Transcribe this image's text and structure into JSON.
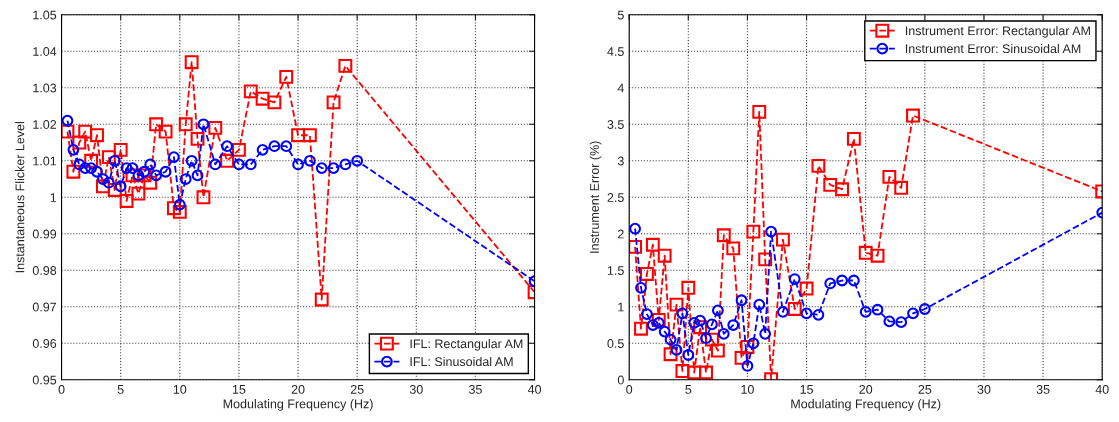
{
  "chart_data": [
    {
      "type": "line",
      "xlabel": "Modulating Frequency (Hz)",
      "ylabel": "Instantaneous Flicker Level",
      "xlim": [
        0,
        40
      ],
      "xticks": [
        0,
        5,
        10,
        15,
        20,
        25,
        30,
        35,
        40
      ],
      "ylim": [
        0.95,
        1.05
      ],
      "yticks": [
        {
          "value": 0.95,
          "label": "0.95"
        },
        {
          "value": 0.96,
          "label": "0.96"
        },
        {
          "value": 0.97,
          "label": "0.97"
        },
        {
          "value": 0.98,
          "label": "0.98"
        },
        {
          "value": 0.99,
          "label": "0.99"
        },
        {
          "value": 1,
          "label": "1"
        },
        {
          "value": 1.01,
          "label": "1.01"
        },
        {
          "value": 1.02,
          "label": "1.02"
        },
        {
          "value": 1.03,
          "label": "1.03"
        },
        {
          "value": 1.04,
          "label": "1.04"
        },
        {
          "value": 1.05,
          "label": "1.05"
        }
      ],
      "grid": true,
      "legend": "bottom right",
      "line_style": "dashed",
      "series": [
        {
          "name": "IFL: Rectangular AM",
          "color": "#ff0000",
          "marker": "square",
          "x": [
            0.5,
            1,
            1.5,
            2,
            2.5,
            3,
            3.5,
            4,
            4.5,
            5,
            5.5,
            6,
            6.5,
            7,
            7.5,
            8,
            8.8,
            9.5,
            10,
            10.5,
            11,
            11.5,
            12,
            13,
            14,
            15,
            16,
            17,
            18,
            19,
            20,
            21,
            22,
            23,
            24,
            40
          ],
          "values": [
            1.018,
            1.007,
            1.015,
            1.018,
            1.01,
            1.017,
            1.003,
            1.011,
            1.002,
            1.013,
            0.999,
            1.006,
            1.001,
            1.006,
            1.004,
            1.02,
            1.018,
            0.997,
            0.996,
            1.02,
            1.037,
            1.016,
            1.0,
            1.019,
            1.01,
            1.013,
            1.029,
            1.027,
            1.026,
            1.033,
            1.017,
            1.017,
            0.972,
            1.026,
            1.036,
            0.974
          ]
        },
        {
          "name": "IFL: Sinusoidal AM",
          "color": "#0000ff",
          "marker": "circle",
          "x": [
            0.5,
            1,
            1.5,
            2,
            2.5,
            3,
            3.5,
            4,
            4.5,
            5,
            5.5,
            6,
            6.5,
            7,
            7.5,
            8,
            8.8,
            9.5,
            10,
            10.5,
            11,
            11.5,
            12,
            13,
            14,
            15,
            16,
            17,
            18,
            19,
            20,
            21,
            22,
            23,
            24,
            25,
            40
          ],
          "values": [
            1.021,
            1.013,
            1.009,
            1.008,
            1.008,
            1.007,
            1.005,
            1.004,
            1.01,
            1.003,
            1.008,
            1.008,
            1.006,
            1.007,
            1.009,
            1.006,
            1.007,
            1.011,
            0.998,
            1.005,
            1.01,
            1.006,
            1.02,
            1.009,
            1.014,
            1.009,
            1.009,
            1.013,
            1.014,
            1.014,
            1.009,
            1.01,
            1.008,
            1.008,
            1.009,
            1.01,
            0.977
          ]
        }
      ]
    },
    {
      "type": "line",
      "xlabel": "Modulating Frequency (Hz)",
      "ylabel": "Instrument Error (%)",
      "xlim": [
        0,
        40
      ],
      "xticks": [
        0,
        5,
        10,
        15,
        20,
        25,
        30,
        35,
        40
      ],
      "ylim": [
        0,
        5
      ],
      "yticks": [
        0,
        0.5,
        1,
        1.5,
        2,
        2.5,
        3,
        3.5,
        4,
        4.5,
        5
      ],
      "grid": true,
      "legend": "top right",
      "line_style": "dashed",
      "series": [
        {
          "name": "Instrument Error: Rectangular AM",
          "color": "#ff0000",
          "marker": "square",
          "x": [
            0.5,
            1,
            1.5,
            2,
            2.5,
            3,
            3.5,
            4,
            4.5,
            5,
            5.5,
            6,
            6.5,
            7,
            7.5,
            8,
            8.8,
            9.5,
            10,
            10.5,
            11,
            11.5,
            12,
            13,
            14,
            15,
            16,
            17,
            18,
            19,
            20,
            21,
            22,
            23,
            24,
            40
          ],
          "values": [
            1.82,
            0.7,
            1.45,
            1.85,
            0.82,
            1.7,
            0.35,
            1.03,
            0.12,
            1.26,
            0.1,
            0.72,
            0.1,
            0.55,
            0.4,
            1.98,
            1.8,
            0.3,
            0.45,
            2.03,
            3.67,
            1.65,
            0.01,
            1.92,
            0.97,
            1.25,
            2.93,
            2.67,
            2.61,
            3.3,
            1.74,
            1.7,
            2.78,
            2.63,
            3.62,
            2.58
          ]
        },
        {
          "name": "Instrument Error: Sinusoidal AM",
          "color": "#0000ff",
          "marker": "circle",
          "x": [
            0.5,
            1,
            1.5,
            2,
            2.5,
            3,
            3.5,
            4,
            4.5,
            5,
            5.5,
            6,
            6.5,
            7,
            7.5,
            8,
            8.8,
            9.5,
            10,
            10.5,
            11,
            11.5,
            12,
            13,
            14,
            15,
            16,
            17,
            18,
            19,
            20,
            21,
            22,
            23,
            24,
            25,
            40
          ],
          "values": [
            2.07,
            1.26,
            0.9,
            0.75,
            0.78,
            0.66,
            0.55,
            0.41,
            0.91,
            0.34,
            0.78,
            0.81,
            0.57,
            0.76,
            0.95,
            0.63,
            0.75,
            1.09,
            0.19,
            0.5,
            1.03,
            0.63,
            2.03,
            0.93,
            1.38,
            0.91,
            0.89,
            1.32,
            1.36,
            1.36,
            0.93,
            0.96,
            0.8,
            0.79,
            0.91,
            0.97,
            2.29
          ]
        }
      ]
    }
  ]
}
